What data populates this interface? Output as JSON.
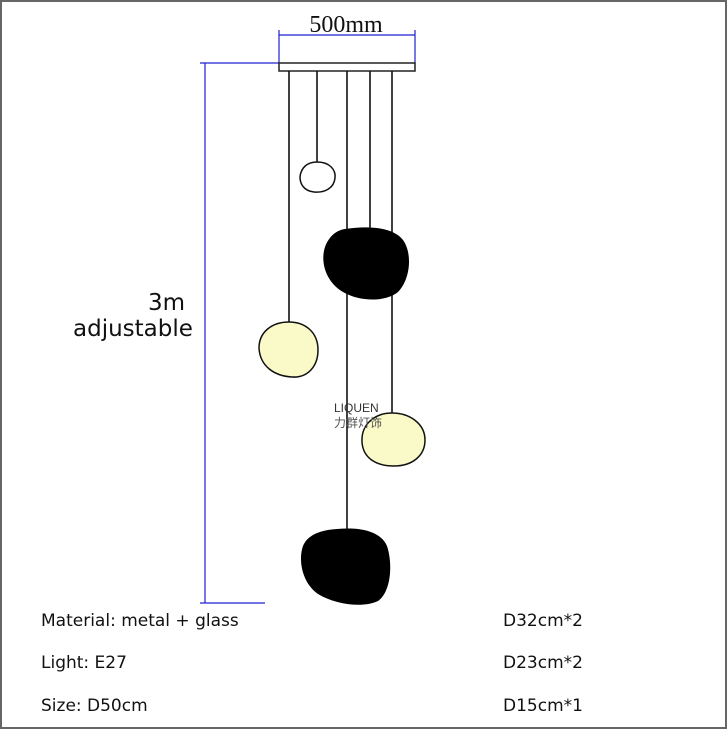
{
  "dimensions": {
    "width_label": "500mm",
    "height_label_line1": "3m",
    "height_label_line2": "adjustable"
  },
  "watermark": {
    "brand_latin": "LIQUEN",
    "brand_chinese": "力群灯饰"
  },
  "specs": {
    "left": [
      "Material: metal + glass",
      "Light: E27",
      "Size: D50cm"
    ],
    "right": [
      "D32cm*2",
      "D23cm*2",
      "D15cm*1"
    ]
  },
  "colors": {
    "dimension_line": "#2020d0",
    "black_globe": "#000000",
    "cream_globe": "#fafac8",
    "frame": "#555555"
  }
}
